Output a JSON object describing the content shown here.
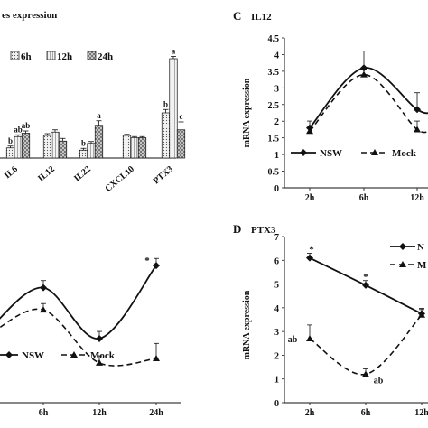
{
  "colors": {
    "ink": "#111111",
    "bar_6h": "#f2f2f2",
    "bar_12h": "#f2f2f2",
    "bar_24h": "#cfcfcf"
  },
  "chart_data": [
    {
      "panel": "",
      "title": "es expression",
      "type": "bar",
      "categories": [
        "IL6",
        "IL12",
        "IL22",
        "CXCL10",
        "PTX3"
      ],
      "series": [
        {
          "name": "6h",
          "values": [
            0.45,
            1.0,
            0.35,
            1.0,
            2.0
          ],
          "errors": [
            0.08,
            0.08,
            0.08,
            0.05,
            0.15
          ],
          "labels": [
            "b",
            "",
            "b",
            "",
            "b"
          ]
        },
        {
          "name": "12h",
          "values": [
            0.95,
            1.15,
            0.65,
            0.9,
            4.4
          ],
          "errors": [
            0.08,
            0.1,
            0.08,
            0.05,
            0.1
          ],
          "labels": [
            "ab",
            "",
            "",
            "",
            "a"
          ]
        },
        {
          "name": "24h",
          "values": [
            1.1,
            0.75,
            1.45,
            0.9,
            1.25
          ],
          "errors": [
            0.1,
            0.12,
            0.2,
            0.05,
            0.35
          ],
          "labels": [
            "ab",
            "",
            "a",
            "",
            "c"
          ]
        }
      ],
      "ylim": [
        0,
        5
      ],
      "legend": "top"
    },
    {
      "panel": "C",
      "title": "IL12",
      "type": "line",
      "ylabel": "mRNA expression",
      "x": [
        "2h",
        "6h",
        "12h"
      ],
      "yticks": [
        "0",
        "0.5",
        "1",
        "1.5",
        "2",
        "2.5",
        "3",
        "3.5",
        "4",
        "4.5"
      ],
      "ylim": [
        0,
        4.5
      ],
      "series": [
        {
          "name": "NSW",
          "values": [
            1.8,
            3.6,
            2.35
          ],
          "errors": [
            0.15,
            0.45,
            0.45
          ],
          "style": "solid"
        },
        {
          "name": "Mock",
          "values": [
            1.7,
            3.4,
            1.75
          ],
          "errors": [
            0.1,
            0.1,
            0.2
          ],
          "style": "dashed"
        }
      ],
      "legend": "bottom"
    },
    {
      "panel": "",
      "title": "",
      "type": "line",
      "x": [
        "6h",
        "12h",
        "24h"
      ],
      "ylim": [
        0,
        4
      ],
      "annotations": [
        "*"
      ],
      "series": [
        {
          "name": "NSW",
          "values": [
            2.6,
            1.45,
            3.1
          ],
          "errors": [
            0.12,
            0.12,
            0.12
          ],
          "style": "solid"
        },
        {
          "name": "Mock",
          "values": [
            2.1,
            0.9,
            1.0
          ],
          "errors": [
            0.1,
            0.12,
            0.3
          ],
          "style": "dashed"
        }
      ],
      "legend": "bottom-left"
    },
    {
      "panel": "D",
      "title": "PTX3",
      "type": "line",
      "ylabel": "mRNA expression",
      "x": [
        "2h",
        "6h",
        "12h"
      ],
      "yticks": [
        "0",
        "1",
        "2",
        "3",
        "4",
        "5",
        "6",
        "7"
      ],
      "ylim": [
        0,
        7
      ],
      "annotations": [
        "*",
        "*",
        "ab",
        "ab"
      ],
      "series": [
        {
          "name": "NSW",
          "values": [
            6.1,
            4.95,
            3.75
          ],
          "errors": [
            0.12,
            0.12,
            0.15
          ],
          "style": "solid"
        },
        {
          "name": "Mock",
          "values": [
            2.7,
            1.2,
            3.7
          ],
          "errors": [
            0.5,
            0.15,
            0.15
          ],
          "style": "dashed"
        }
      ],
      "legend": "top-right",
      "legend_labels": [
        "N",
        "M"
      ]
    }
  ]
}
